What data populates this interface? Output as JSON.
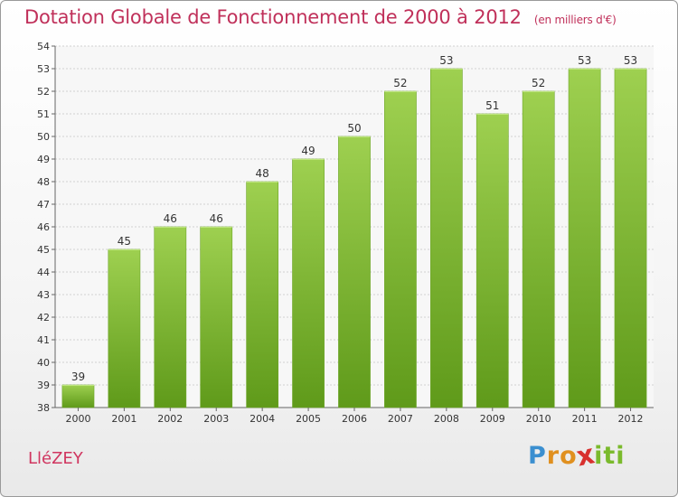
{
  "chart_data": {
    "type": "bar",
    "title": "Dotation Globale de Fonctionnement de 2000 à 2012",
    "subtitle": "(en milliers d'€)",
    "categories": [
      "2000",
      "2001",
      "2002",
      "2003",
      "2004",
      "2005",
      "2006",
      "2007",
      "2008",
      "2009",
      "2010",
      "2011",
      "2012"
    ],
    "values": [
      39,
      45,
      46,
      46,
      48,
      49,
      50,
      52,
      53,
      51,
      52,
      53,
      53
    ],
    "ylim": [
      38,
      54
    ],
    "yticks": [
      38,
      39,
      40,
      41,
      42,
      43,
      44,
      45,
      46,
      47,
      48,
      49,
      50,
      51,
      52,
      53,
      54
    ],
    "grid": true,
    "bar_color_top": "#9ed050",
    "bar_color_bottom": "#5f9a1a"
  },
  "commune": "LléZEY",
  "logo": {
    "letters": [
      "P",
      "r",
      "o",
      "x",
      "i",
      "t",
      "i"
    ],
    "colors": [
      "#3b8fd0",
      "#e0901f",
      "#e0901f",
      "#d8302e",
      "#7aba2c",
      "#7aba2c",
      "#7aba2c"
    ]
  }
}
